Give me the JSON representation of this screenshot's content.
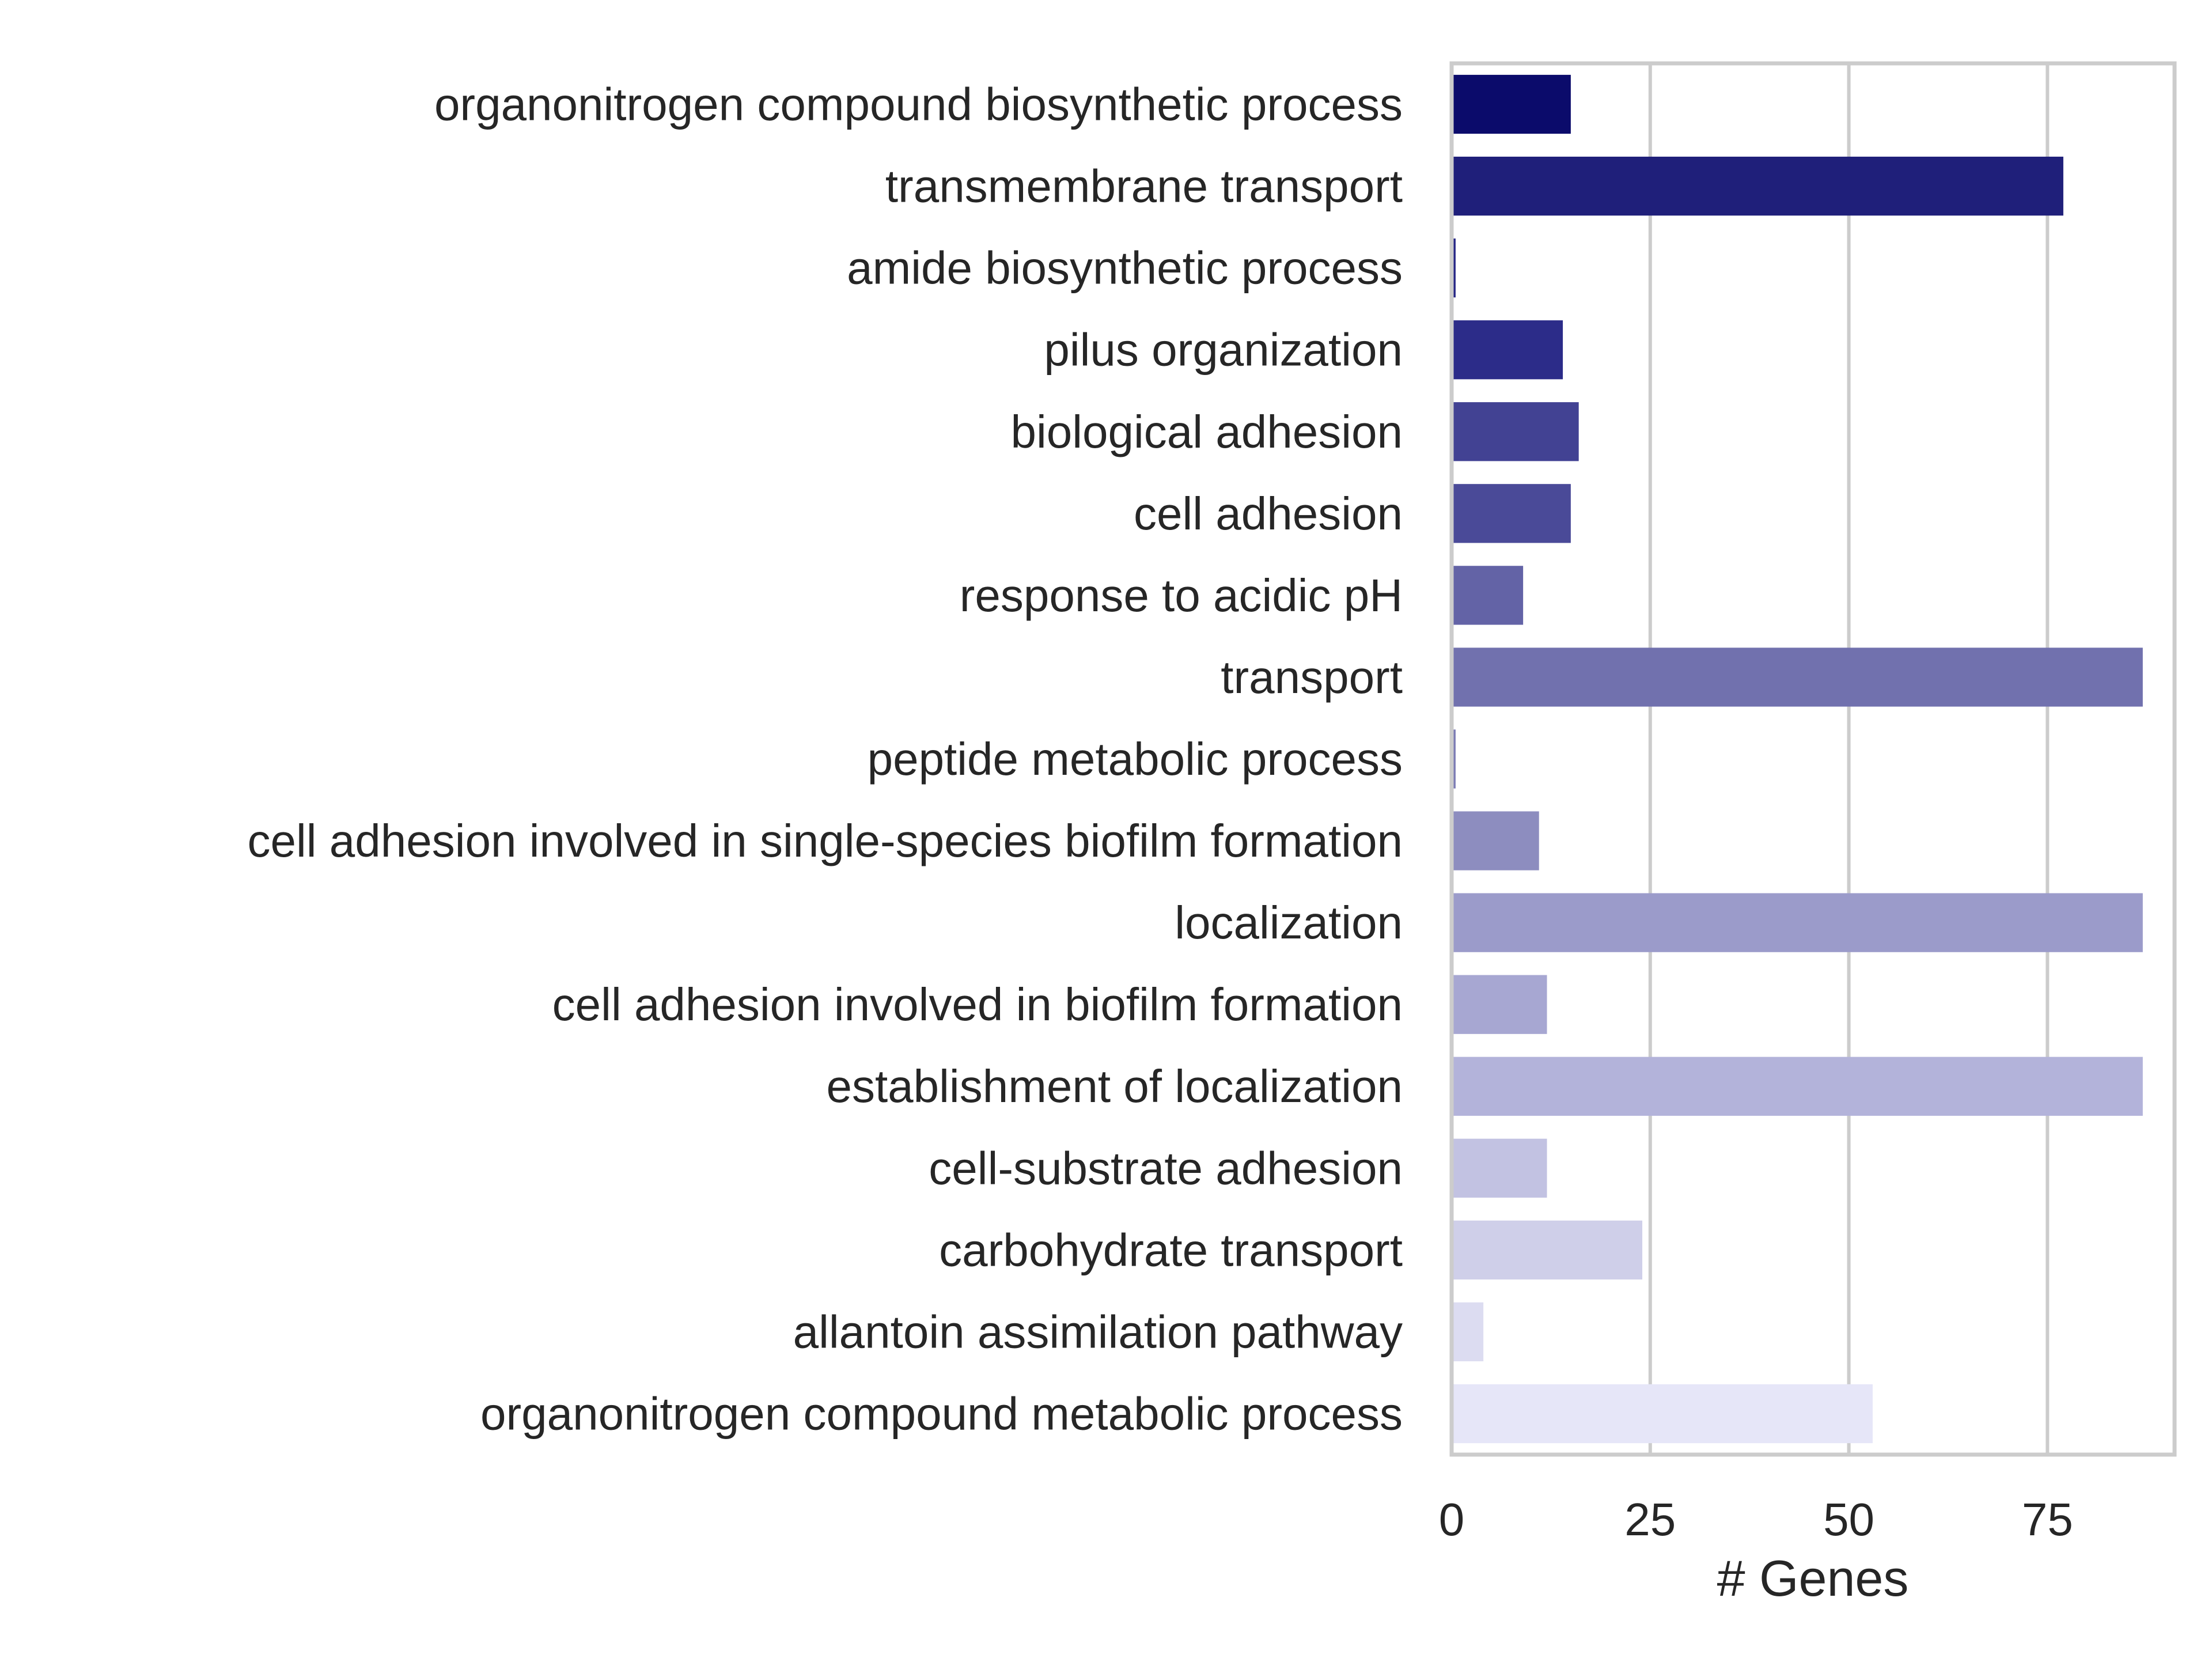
{
  "chart_data": {
    "type": "bar",
    "orientation": "horizontal",
    "title": "",
    "xlabel": "# Genes",
    "ylabel": "",
    "xlim": [
      0,
      91
    ],
    "xticks": [
      0,
      25,
      50,
      75
    ],
    "xtick_labels": [
      "0",
      "25",
      "50",
      "75"
    ],
    "grid": "vertical",
    "legend": "none",
    "categories": [
      "organonitrogen compound biosynthetic process",
      "transmembrane transport",
      "amide biosynthetic process",
      "pilus organization",
      "biological adhesion",
      "cell adhesion",
      "response to acidic pH",
      "transport",
      "peptide metabolic process",
      "cell adhesion involved in single-species biofilm formation",
      "localization",
      "cell adhesion involved in biofilm formation",
      "establishment of localization",
      "cell-substrate adhesion",
      "carbohydrate transport",
      "allantoin assimilation pathway",
      "organonitrogen compound metabolic process"
    ],
    "values": [
      15,
      77,
      0.5,
      14,
      16,
      15,
      9,
      87,
      0.5,
      11,
      87,
      12,
      87,
      12,
      24,
      4,
      53
    ],
    "colors": [
      "#0b0b6b",
      "#1f1f7a",
      "#252585",
      "#2c2c89",
      "#424293",
      "#4a4a98",
      "#6363a6",
      "#7171ae",
      "#7b7bb4",
      "#8d8dbf",
      "#9b9bca",
      "#a7a7d2",
      "#b3b3da",
      "#c2c2e2",
      "#cfcfe9",
      "#dcdcf1",
      "#e6e6f8"
    ]
  }
}
